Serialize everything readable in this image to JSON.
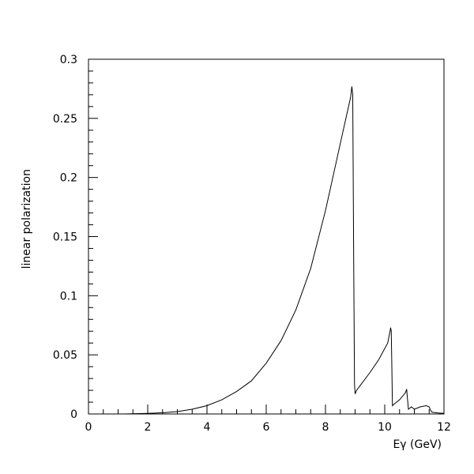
{
  "chart_data": {
    "type": "line",
    "title": "",
    "xlabel": "Eγ (GeV)",
    "ylabel": "linear polarization",
    "xlim": [
      0,
      12
    ],
    "ylim": [
      0,
      0.3
    ],
    "x_ticks": [
      "0",
      "2",
      "4",
      "6",
      "8",
      "10",
      "12"
    ],
    "y_ticks": [
      "0",
      "0.05",
      "0.1",
      "0.15",
      "0.2",
      "0.25",
      "0.3"
    ],
    "grid": false,
    "line_color": "#000000",
    "series": [
      {
        "name": "",
        "x": [
          1.2,
          2.0,
          2.5,
          3.0,
          3.5,
          4.0,
          4.5,
          5.0,
          5.5,
          6.0,
          6.5,
          7.0,
          7.5,
          8.0,
          8.3,
          8.6,
          8.85,
          8.89,
          8.92,
          8.95,
          8.98,
          9.0,
          9.05,
          9.2,
          9.5,
          9.8,
          10.1,
          10.18,
          10.2,
          10.22,
          10.24,
          10.26,
          10.3,
          10.5,
          10.7,
          10.74,
          10.76,
          10.8,
          10.9,
          11.0,
          11.2,
          11.4,
          11.5,
          11.55,
          11.6,
          11.8,
          12.0
        ],
        "y": [
          0.0,
          0.0005,
          0.001,
          0.002,
          0.004,
          0.007,
          0.012,
          0.019,
          0.028,
          0.043,
          0.062,
          0.088,
          0.123,
          0.172,
          0.206,
          0.24,
          0.268,
          0.277,
          0.27,
          0.14,
          0.025,
          0.017,
          0.02,
          0.025,
          0.035,
          0.046,
          0.06,
          0.07,
          0.073,
          0.07,
          0.04,
          0.007,
          0.008,
          0.012,
          0.018,
          0.021,
          0.015,
          0.004,
          0.006,
          0.004,
          0.006,
          0.007,
          0.006,
          0.003,
          0.0015,
          0.0008,
          0.0005
        ]
      }
    ]
  }
}
